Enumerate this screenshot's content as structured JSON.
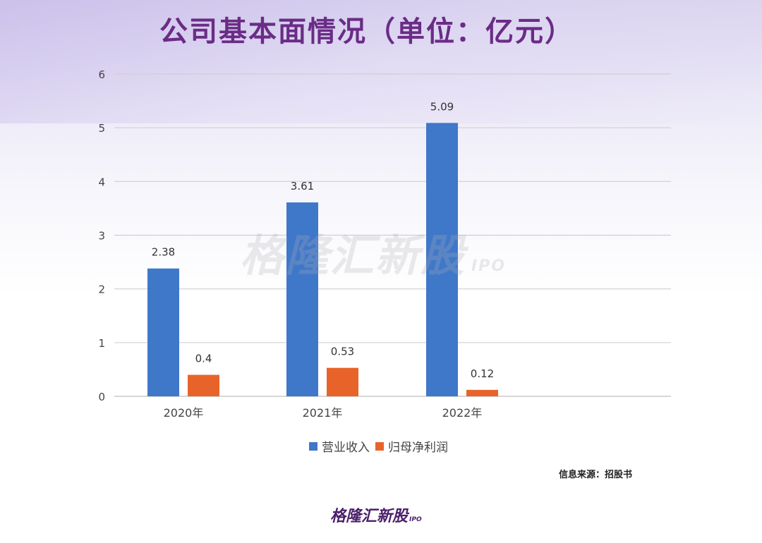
{
  "title": "公司基本面情况（单位：亿元）",
  "watermark": {
    "text": "格隆汇新股",
    "suffix": "IPO"
  },
  "source": "信息来源：招股书",
  "logo": {
    "text": "格隆汇新股",
    "suffix": "IPO"
  },
  "chart_data": {
    "type": "bar",
    "categories": [
      "2020年",
      "2021年",
      "2022年"
    ],
    "series": [
      {
        "name": "营业收入",
        "values": [
          2.38,
          3.61,
          5.09
        ],
        "labels": [
          "2.38",
          "3.61",
          "5.09"
        ],
        "color": "#4078c9"
      },
      {
        "name": "归母净利润",
        "values": [
          0.4,
          0.53,
          0.12
        ],
        "labels": [
          "0.4",
          "0.53",
          "0.12"
        ],
        "color": "#e8632a"
      }
    ],
    "ylim": [
      0,
      6
    ],
    "yticks": [
      "0",
      "1",
      "2",
      "3",
      "4",
      "5",
      "6"
    ],
    "grid": true,
    "legend": "bottom"
  }
}
